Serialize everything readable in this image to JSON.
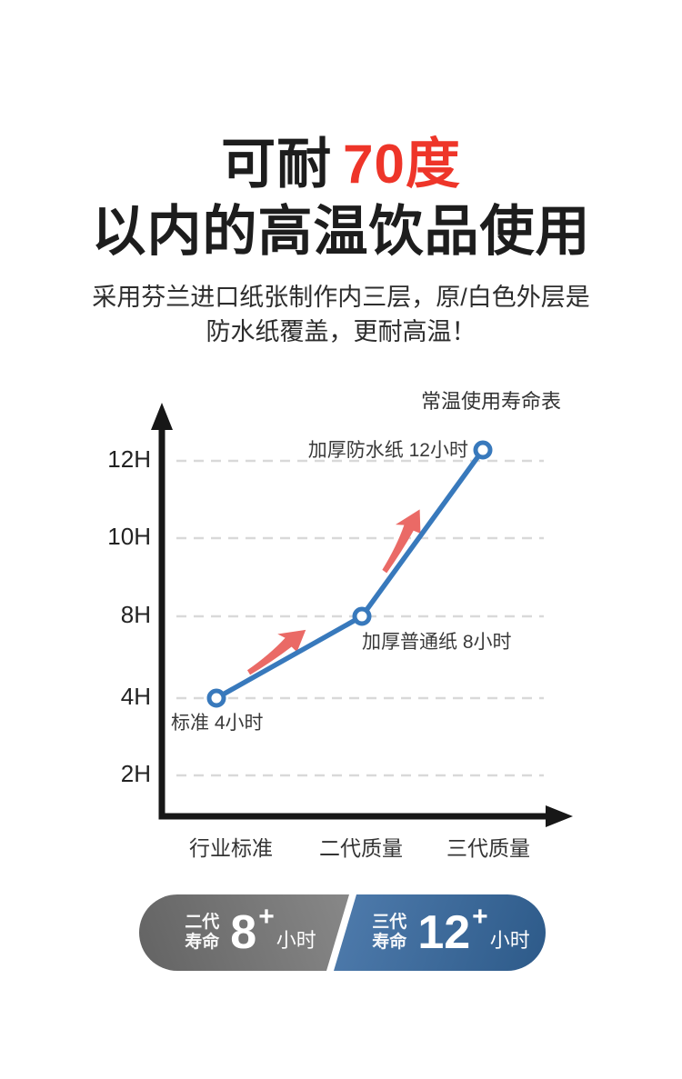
{
  "header": {
    "title_prefix": "可耐",
    "title_highlight": "70度",
    "title_line2": "以内的高温饮品使用",
    "subtitle_line1": "采用芬兰进口纸张制作内三层，原/白色外层是",
    "subtitle_line2": "防水纸覆盖，更耐高温！",
    "highlight_color": "#ee3529"
  },
  "chart_data": {
    "type": "line",
    "title": "常温使用寿命表",
    "categories": [
      "行业标准",
      "二代质量",
      "三代质量"
    ],
    "series": [
      {
        "name": "常温使用寿命",
        "values": [
          4,
          8,
          12
        ],
        "unit": "小时"
      }
    ],
    "yticks": [
      {
        "value": 12,
        "label": "12H"
      },
      {
        "value": 10,
        "label": "10H"
      },
      {
        "value": 8,
        "label": "8H"
      },
      {
        "value": 4,
        "label": "4H"
      },
      {
        "value": 2,
        "label": "2H"
      }
    ],
    "point_labels": [
      "标准 4小时",
      "加厚普通纸 8小时",
      "加厚防水纸 12小时"
    ],
    "ylim": [
      0,
      13
    ],
    "grid": "horizontal-dashed",
    "legend": "none",
    "line_color": "#3879bc",
    "arrow_color": "#ea6a66"
  },
  "badges": {
    "gen2": {
      "label_line1": "二代",
      "label_line2": "寿命",
      "value": "8",
      "plus": "+",
      "unit": "小时"
    },
    "gen3": {
      "label_line1": "三代",
      "label_line2": "寿命",
      "value": "12",
      "plus": "+",
      "unit": "小时"
    }
  },
  "colors": {
    "badge_gray_start": "#636363",
    "badge_gray_end": "#a6a6a6",
    "badge_blue_start": "#6b97ca",
    "badge_blue_end": "#2d5a89",
    "grid_gray": "#d9d9d9",
    "axis_black": "#171717"
  }
}
